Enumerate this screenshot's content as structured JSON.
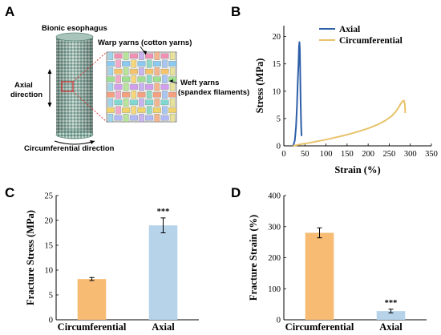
{
  "panels": {
    "a": "A",
    "b": "B",
    "c": "C",
    "d": "D"
  },
  "diagram": {
    "title": "Bionic esophagus",
    "warp_label": "Warp yarns (cotton yarns)",
    "weft_label_line1": "Weft yarns",
    "weft_label_line2": "(spandex filaments)",
    "axial_line1": "Axial",
    "axial_line2": "direction",
    "circ_label": "Circumferential direction",
    "warp_color": "#4a86c8",
    "weft_color": "#9a5b1a"
  },
  "colors": {
    "axial": "#2e5fa8",
    "circumferential": "#e8c26a",
    "bar_orange": "#f7bb74",
    "bar_blue": "#b6d3ea"
  },
  "chart_data": [
    {
      "type": "line",
      "panel": "B",
      "xlabel": "Strain (%)",
      "ylabel": "Stress (MPa)",
      "xlim": [
        0,
        350
      ],
      "ylim": [
        0,
        22
      ],
      "xticks": [
        0,
        50,
        100,
        150,
        200,
        250,
        300,
        350
      ],
      "yticks": [
        0,
        5,
        10,
        15,
        20
      ],
      "legend_position": "top-right",
      "series": [
        {
          "name": "Axial",
          "color": "#2e5fa8",
          "points": [
            [
              22,
              0
            ],
            [
              26,
              1.0
            ],
            [
              29,
              3.5
            ],
            [
              31,
              7
            ],
            [
              33,
              11.5
            ],
            [
              35,
              15.5
            ],
            [
              36,
              18.2
            ],
            [
              37,
              19.0
            ],
            [
              38,
              17.5
            ],
            [
              39,
              12.5
            ],
            [
              40,
              7.5
            ],
            [
              41,
              3.5
            ],
            [
              42,
              1.8
            ]
          ]
        },
        {
          "name": "Circumferential",
          "color": "#e8c26a",
          "points": [
            [
              22,
              0
            ],
            [
              40,
              0.3
            ],
            [
              60,
              0.55
            ],
            [
              80,
              0.85
            ],
            [
              100,
              1.15
            ],
            [
              120,
              1.5
            ],
            [
              140,
              1.85
            ],
            [
              160,
              2.25
            ],
            [
              180,
              2.7
            ],
            [
              200,
              3.2
            ],
            [
              220,
              3.8
            ],
            [
              240,
              4.6
            ],
            [
              255,
              5.4
            ],
            [
              265,
              6.2
            ],
            [
              272,
              7.0
            ],
            [
              278,
              7.8
            ],
            [
              282,
              8.2
            ],
            [
              285,
              8.3
            ],
            [
              287,
              7.6
            ],
            [
              288,
              6.0
            ]
          ]
        }
      ]
    },
    {
      "type": "bar",
      "panel": "C",
      "ylabel": "Fracture Stress (MPa)",
      "ylim": [
        0,
        25
      ],
      "yticks": [
        0,
        5,
        10,
        15,
        20,
        25
      ],
      "categories": [
        "Circumferential",
        "Axial"
      ],
      "values": [
        8.2,
        19.0
      ],
      "errors": [
        0.3,
        1.5
      ],
      "colors": [
        "#f7bb74",
        "#b6d3ea"
      ],
      "significance": [
        "",
        "***"
      ]
    },
    {
      "type": "bar",
      "panel": "D",
      "ylabel": "Fracture Strain (%)",
      "ylim": [
        0,
        400
      ],
      "yticks": [
        0,
        100,
        200,
        300,
        400
      ],
      "categories": [
        "Circumferential",
        "Axial"
      ],
      "values": [
        280,
        28
      ],
      "errors": [
        16,
        6
      ],
      "colors": [
        "#f7bb74",
        "#b6d3ea"
      ],
      "significance": [
        "",
        "***"
      ]
    }
  ]
}
